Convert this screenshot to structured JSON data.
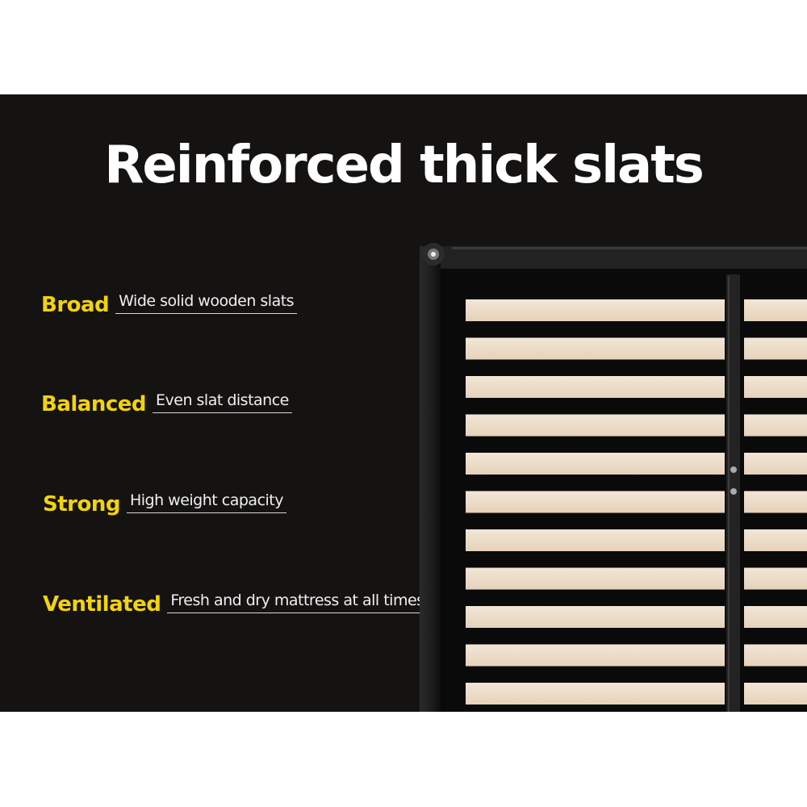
{
  "title": "Reinforced thick slats",
  "features": [
    {
      "label": "Broad",
      "description": "Wide solid wooden slats"
    },
    {
      "label": "Balanced",
      "description": "Even slat distance"
    },
    {
      "label": "Strong",
      "description": "High weight capacity"
    },
    {
      "label": "Ventilated",
      "description": "Fresh and dry mattress at all times"
    }
  ],
  "colors": {
    "background": "#151312",
    "label": "#f3d30c",
    "slat": "#eedfcb",
    "frame": "#1c1c1c"
  }
}
